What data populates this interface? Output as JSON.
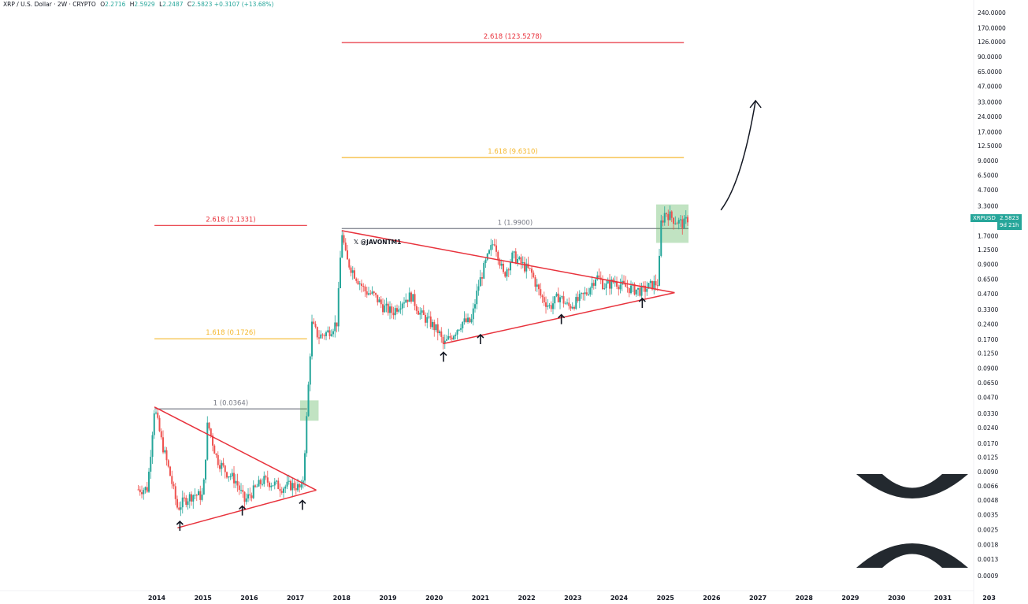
{
  "header": {
    "symbol": "XRP / U.S. Dollar · 2W · CRYPTO",
    "open_label": "O",
    "open": "2.2716",
    "high_label": "H",
    "high": "2.5929",
    "low_label": "L",
    "low": "2.2487",
    "close_label": "C",
    "close": "2.5823",
    "change": "+0.3107 (+13.68%)"
  },
  "watermark": "@JAVONTM1",
  "price_tag": {
    "symbol": "XRPUSD",
    "price": "2.5823",
    "countdown": "9d 21h"
  },
  "colors": {
    "up": "#26a69a",
    "down": "#ef5350",
    "red_line": "#e8323c",
    "gold_line": "#f5b82e",
    "grey_line": "#787b86",
    "highlight": "#4caf50"
  },
  "chart_data": {
    "type": "candlestick",
    "yscale": "log",
    "ylim": [
      0.0009,
      240
    ],
    "xlim": [
      "2014",
      "2031"
    ],
    "yticks": [
      "240.0000",
      "170.0000",
      "126.0000",
      "90.0000",
      "65.0000",
      "47.0000",
      "33.0000",
      "24.0000",
      "17.0000",
      "12.5000",
      "9.0000",
      "6.5000",
      "4.7000",
      "3.3000",
      "2.5823",
      "1.7000",
      "1.2500",
      "0.9000",
      "0.6500",
      "0.4700",
      "0.3300",
      "0.2400",
      "0.1700",
      "0.1250",
      "0.0900",
      "0.0650",
      "0.0470",
      "0.0330",
      "0.0240",
      "0.0170",
      "0.0125",
      "0.0090",
      "0.0066",
      "0.0048",
      "0.0035",
      "0.0025",
      "0.0018",
      "0.0013",
      "0.0009"
    ],
    "xticks": [
      "2014",
      "2015",
      "2016",
      "2017",
      "2018",
      "2019",
      "2020",
      "2021",
      "2022",
      "2023",
      "2024",
      "2025",
      "2026",
      "2027",
      "2028",
      "2029",
      "2030",
      "2031",
      "203"
    ],
    "price_path": [
      [
        2013.6,
        0.0061
      ],
      [
        2013.8,
        0.0062
      ],
      [
        2013.95,
        0.038
      ],
      [
        2014.1,
        0.018
      ],
      [
        2014.3,
        0.008
      ],
      [
        2014.45,
        0.004
      ],
      [
        2014.6,
        0.0048
      ],
      [
        2014.8,
        0.0055
      ],
      [
        2015.0,
        0.0052
      ],
      [
        2015.1,
        0.027
      ],
      [
        2015.3,
        0.012
      ],
      [
        2015.5,
        0.009
      ],
      [
        2015.7,
        0.0075
      ],
      [
        2015.9,
        0.0047
      ],
      [
        2016.1,
        0.006
      ],
      [
        2016.3,
        0.0075
      ],
      [
        2016.5,
        0.007
      ],
      [
        2016.7,
        0.0064
      ],
      [
        2016.9,
        0.0067
      ],
      [
        2017.0,
        0.0066
      ],
      [
        2017.15,
        0.006
      ],
      [
        2017.25,
        0.034
      ],
      [
        2017.35,
        0.24
      ],
      [
        2017.5,
        0.18
      ],
      [
        2017.7,
        0.2
      ],
      [
        2017.9,
        0.25
      ],
      [
        2018.0,
        1.9
      ],
      [
        2018.1,
        1.0
      ],
      [
        2018.3,
        0.7
      ],
      [
        2018.5,
        0.5
      ],
      [
        2018.7,
        0.45
      ],
      [
        2018.9,
        0.35
      ],
      [
        2019.1,
        0.31
      ],
      [
        2019.3,
        0.4
      ],
      [
        2019.5,
        0.45
      ],
      [
        2019.7,
        0.3
      ],
      [
        2019.9,
        0.25
      ],
      [
        2020.1,
        0.2
      ],
      [
        2020.2,
        0.15
      ],
      [
        2020.4,
        0.19
      ],
      [
        2020.6,
        0.25
      ],
      [
        2020.8,
        0.25
      ],
      [
        2020.95,
        0.55
      ],
      [
        2021.1,
        0.9
      ],
      [
        2021.3,
        1.55
      ],
      [
        2021.5,
        0.7
      ],
      [
        2021.7,
        1.1
      ],
      [
        2021.9,
        0.9
      ],
      [
        2022.1,
        0.75
      ],
      [
        2022.3,
        0.45
      ],
      [
        2022.5,
        0.35
      ],
      [
        2022.7,
        0.45
      ],
      [
        2022.9,
        0.35
      ],
      [
        2023.1,
        0.4
      ],
      [
        2023.3,
        0.48
      ],
      [
        2023.5,
        0.7
      ],
      [
        2023.7,
        0.55
      ],
      [
        2023.9,
        0.62
      ],
      [
        2024.1,
        0.55
      ],
      [
        2024.3,
        0.52
      ],
      [
        2024.5,
        0.5
      ],
      [
        2024.7,
        0.57
      ],
      [
        2024.85,
        0.6
      ],
      [
        2024.9,
        2.2
      ],
      [
        2025.0,
        2.9
      ],
      [
        2025.2,
        2.4
      ],
      [
        2025.4,
        2.2
      ],
      [
        2025.5,
        2.5823
      ]
    ],
    "levels": [
      {
        "label": "2.618 (123.5278)",
        "value": 123.5278,
        "x": [
          2018.0,
          2025.4
        ],
        "color": "red"
      },
      {
        "label": "1.618 (9.6310)",
        "value": 9.631,
        "x": [
          2018.0,
          2025.4
        ],
        "color": "gold"
      },
      {
        "label": "1 (1.9900)",
        "value": 1.99,
        "x": [
          2018.0,
          2025.5
        ],
        "color": "grey"
      },
      {
        "label": "2.618 (2.1331)",
        "value": 2.1331,
        "x": [
          2013.95,
          2017.25
        ],
        "color": "red"
      },
      {
        "label": "1.618 (0.1726)",
        "value": 0.1726,
        "x": [
          2013.95,
          2017.25
        ],
        "color": "gold"
      },
      {
        "label": "1 (0.0364)",
        "value": 0.0364,
        "x": [
          2013.95,
          2017.25
        ],
        "color": "grey"
      }
    ],
    "triangles": [
      {
        "upper": [
          [
            2013.95,
            0.038
          ],
          [
            2017.45,
            0.006
          ]
        ],
        "lower": [
          [
            2014.45,
            0.0026
          ],
          [
            2017.45,
            0.006
          ]
        ]
      },
      {
        "upper": [
          [
            2018.0,
            1.9
          ],
          [
            2025.2,
            0.48
          ]
        ],
        "lower": [
          [
            2020.2,
            0.155
          ],
          [
            2025.2,
            0.48
          ]
        ]
      }
    ],
    "arrows_up": [
      [
        2014.5,
        0.0027
      ],
      [
        2015.85,
        0.0038
      ],
      [
        2017.15,
        0.0043
      ],
      [
        2020.2,
        0.115
      ],
      [
        2021.0,
        0.17
      ],
      [
        2022.75,
        0.265
      ],
      [
        2024.5,
        0.38
      ]
    ],
    "boxes": [
      {
        "x": [
          2017.1,
          2017.5
        ],
        "y": [
          0.028,
          0.044
        ]
      },
      {
        "x": [
          2024.8,
          2025.5
        ],
        "y": [
          1.45,
          3.4
        ]
      }
    ],
    "projection_arrow": [
      [
        2026.2,
        3.0
      ],
      [
        2026.5,
        4.5
      ],
      [
        2026.75,
        10.0
      ],
      [
        2026.95,
        34.0
      ]
    ]
  }
}
